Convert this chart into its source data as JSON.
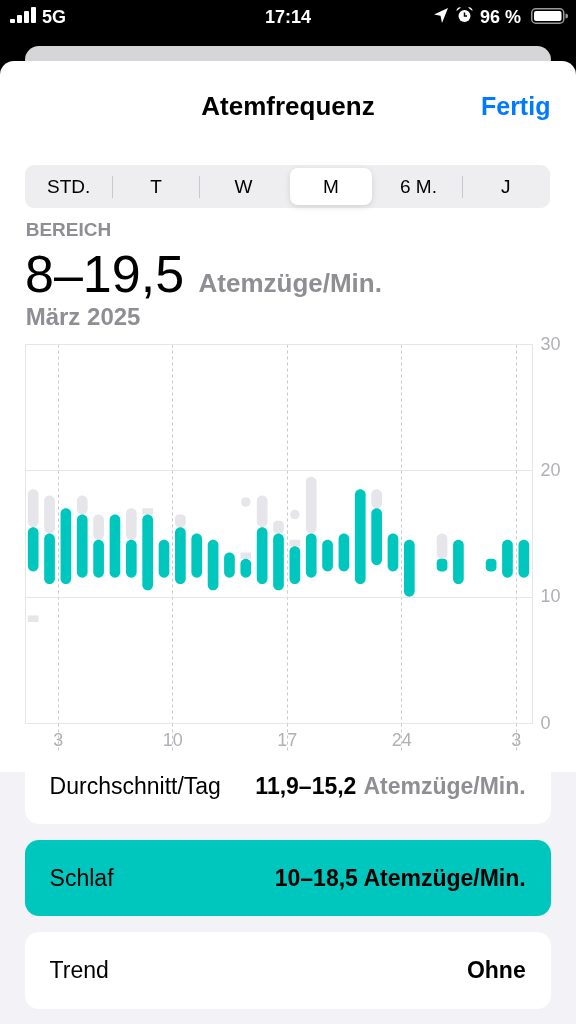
{
  "chart_data": {
    "type": "bar",
    "title": "Atemfrequenz",
    "subtitle": "März 2025",
    "annotations": [
      "5G",
      "17:14",
      "96 %",
      "Fertig",
      "STD.",
      "T",
      "W",
      "M",
      "6 M.",
      "J",
      "BEREICH",
      "8–19,5",
      "Atemzüge/Min.",
      "Durchschnitt/Tag",
      "11,9–15,2",
      "Atemzüge/Min.",
      "Schlaf",
      "10–18,5 Atemzüge/Min.",
      "Trend",
      "Ohne"
    ],
    "x": [
      "2025-03-01T12:00",
      "2025-03-02T12:00",
      "2025-03-03T12:00",
      "2025-03-04T12:00",
      "2025-03-05T12:00",
      "2025-03-06T12:00",
      "2025-03-07T12:00",
      "2025-03-08T12:00",
      "2025-03-09T12:00",
      "2025-03-10T12:00",
      "2025-03-11T12:00",
      "2025-03-12T12:00",
      "2025-03-13T12:00",
      "2025-03-14T12:00",
      "2025-03-15T12:00",
      "2025-03-16T12:00",
      "2025-03-17T12:00",
      "2025-03-18T12:00",
      "2025-03-19T12:00",
      "2025-03-20T12:00",
      "2025-03-21T12:00",
      "2025-03-22T12:00",
      "2025-03-23T12:00",
      "2025-03-24T12:00",
      "2025-03-26T12:00",
      "2025-03-27T12:00",
      "2025-03-29T12:00",
      "2025-03-30T12:00",
      "2025-03-31T12:00"
    ],
    "xlim": [
      "2025-03-01",
      "2025-04-01"
    ],
    "xticks": [
      {
        "value": "2025-03-03",
        "label": "3"
      },
      {
        "value": "2025-03-10",
        "label": "10"
      },
      {
        "value": "2025-03-17",
        "label": "17"
      },
      {
        "value": "2025-03-24",
        "label": "24"
      },
      {
        "value": "2025-03-31",
        "label": "3"
      }
    ],
    "ylim": [
      0,
      30
    ],
    "yticks": [
      0,
      10,
      20,
      30
    ],
    "grid": true,
    "series": [
      {
        "color": "#e5e5ea",
        "base": [
          15.5,
          15,
          null,
          16.5,
          14.5,
          null,
          14.5,
          16.5,
          null,
          15.5,
          null,
          null,
          null,
          13,
          15.5,
          15,
          14,
          15,
          null,
          null,
          null,
          17,
          null,
          null,
          13,
          null,
          null,
          null,
          null
        ],
        "values": [
          3,
          3,
          null,
          1.5,
          2,
          null,
          2.5,
          0.5,
          null,
          1,
          null,
          null,
          null,
          0.5,
          2.5,
          1,
          0.5,
          4.5,
          null,
          null,
          null,
          1.5,
          null,
          null,
          2,
          null,
          null,
          null,
          null
        ]
      },
      {
        "color": "#e5e5ea",
        "base": [
          8,
          null,
          null,
          null,
          null,
          null,
          null,
          null,
          null,
          null,
          null,
          null,
          null,
          null,
          null,
          null,
          null,
          null,
          null,
          null,
          null,
          null,
          null,
          null,
          null,
          null,
          null,
          null,
          null
        ],
        "values": [
          0.5,
          null,
          null,
          null,
          null,
          null,
          null,
          null,
          null,
          null,
          null,
          null,
          null,
          null,
          null,
          null,
          null,
          null,
          null,
          null,
          null,
          null,
          null,
          null,
          null,
          null,
          null,
          null,
          null
        ]
      },
      {
        "type": "scatter",
        "color": "#e5e5ea",
        "marker": "circle",
        "x": [
          "2025-03-14T12:00",
          "2025-03-17T12:00"
        ],
        "values": [
          17.5,
          16.5
        ]
      },
      {
        "color": "#00c7be",
        "base": [
          12,
          11,
          11,
          11.5,
          11.5,
          11.5,
          11.5,
          10.5,
          11.5,
          11,
          11.5,
          10.5,
          11.5,
          11.5,
          11,
          10.5,
          11,
          11.5,
          12,
          12,
          11,
          12.5,
          12,
          10,
          12,
          11,
          12,
          11.5,
          11.5
        ],
        "values": [
          3.5,
          4,
          6,
          5,
          3,
          5,
          3,
          6,
          3,
          4.5,
          3.5,
          4,
          2,
          1.5,
          4.5,
          4.5,
          3,
          3.5,
          2.5,
          3,
          7.5,
          4.5,
          3,
          4.5,
          1,
          3.5,
          1,
          3,
          3
        ]
      }
    ]
  }
}
